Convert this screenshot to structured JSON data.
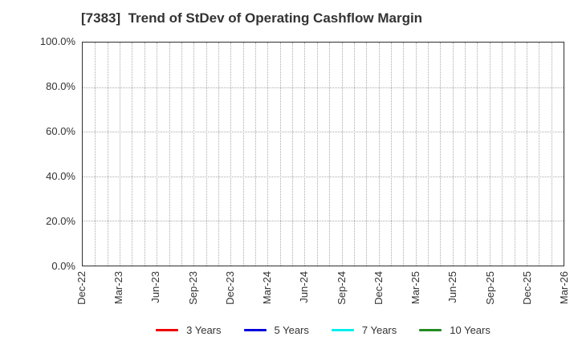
{
  "chart_data": {
    "type": "line",
    "title": "[7383]  Trend of StDev of Operating Cashflow Margin",
    "xlabel": "",
    "ylabel": "",
    "x_tick_labels": [
      "Dec-22",
      "Mar-23",
      "Jun-23",
      "Sep-23",
      "Dec-23",
      "Mar-24",
      "Jun-24",
      "Sep-24",
      "Dec-24",
      "Mar-25",
      "Jun-25",
      "Sep-25",
      "Dec-25",
      "Mar-26"
    ],
    "y_tick_labels": [
      "100.0%",
      "80.0%",
      "60.0%",
      "40.0%",
      "20.0%",
      "0.0%"
    ],
    "y_tick_values": [
      100,
      80,
      60,
      40,
      20,
      0
    ],
    "ylim": [
      0,
      100
    ],
    "grid": true,
    "gridline_style": "dotted",
    "minor_vertical_gridlines_per_quarter": 3,
    "legend_position": "bottom-center",
    "series": [
      {
        "name": "3 Years",
        "color": "#ee0000",
        "values": []
      },
      {
        "name": "5 Years",
        "color": "#0000dd",
        "values": []
      },
      {
        "name": "7 Years",
        "color": "#00eeee",
        "values": []
      },
      {
        "name": "10 Years",
        "color": "#228b22",
        "values": []
      }
    ],
    "note": "plot area is empty - no data points are drawn"
  },
  "colors": {
    "title_text": "#333333",
    "tick_text": "#333333",
    "plot_border": "#2f2f2f",
    "gridline": "#ababab",
    "background": "#ffffff"
  }
}
